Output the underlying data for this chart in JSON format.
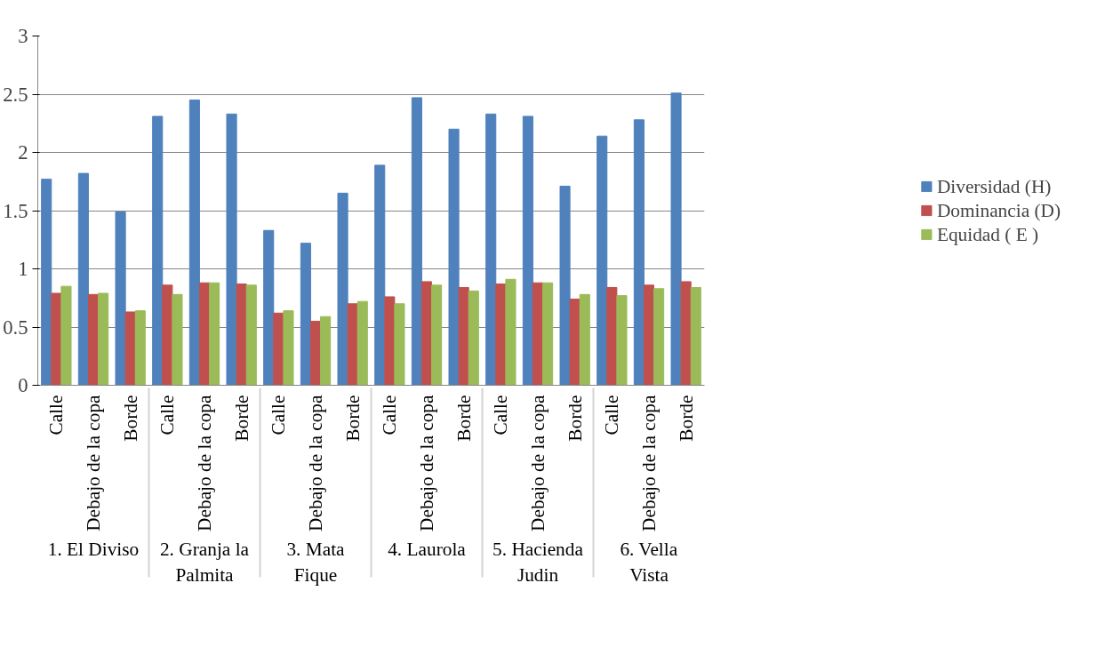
{
  "chart_data": {
    "type": "bar",
    "categories": [
      "Calle",
      "Debajo de la copa",
      "Borde",
      "Calle",
      "Debajo de la copa",
      "Borde",
      "Calle",
      "Debajo de la copa",
      "Borde",
      "Calle",
      "Debajo de la copa",
      "Borde",
      "Calle",
      "Debajo de la copa",
      "Borde",
      "Calle",
      "Debajo de la copa",
      "Borde"
    ],
    "annotations": [
      "1. El Diviso",
      "2. Granja la Palmita",
      "3. Mata Fique",
      "4. Laurola",
      "5. Hacienda Judin",
      "6. Vella Vista"
    ],
    "series": [
      {
        "name": "Diversidad (H)",
        "color": "#4f81bd",
        "values": [
          1.77,
          1.82,
          1.49,
          2.31,
          2.45,
          2.33,
          1.33,
          1.22,
          1.65,
          1.89,
          2.47,
          2.2,
          2.33,
          2.31,
          1.71,
          2.14,
          2.28,
          2.51
        ]
      },
      {
        "name": "Dominancia (D)",
        "color": "#c0504d",
        "values": [
          0.79,
          0.78,
          0.63,
          0.86,
          0.88,
          0.87,
          0.62,
          0.55,
          0.7,
          0.76,
          0.89,
          0.84,
          0.87,
          0.88,
          0.74,
          0.84,
          0.86,
          0.89
        ]
      },
      {
        "name": "Equidad ( E )",
        "color": "#9bbb59",
        "values": [
          0.85,
          0.79,
          0.64,
          0.78,
          0.88,
          0.86,
          0.64,
          0.59,
          0.72,
          0.7,
          0.86,
          0.81,
          0.91,
          0.88,
          0.78,
          0.77,
          0.83,
          0.84
        ]
      }
    ],
    "ylim": [
      0,
      3
    ],
    "yticks": [
      0,
      0.5,
      1,
      1.5,
      2,
      2.5,
      3
    ],
    "grid": "y",
    "legend": "right"
  }
}
